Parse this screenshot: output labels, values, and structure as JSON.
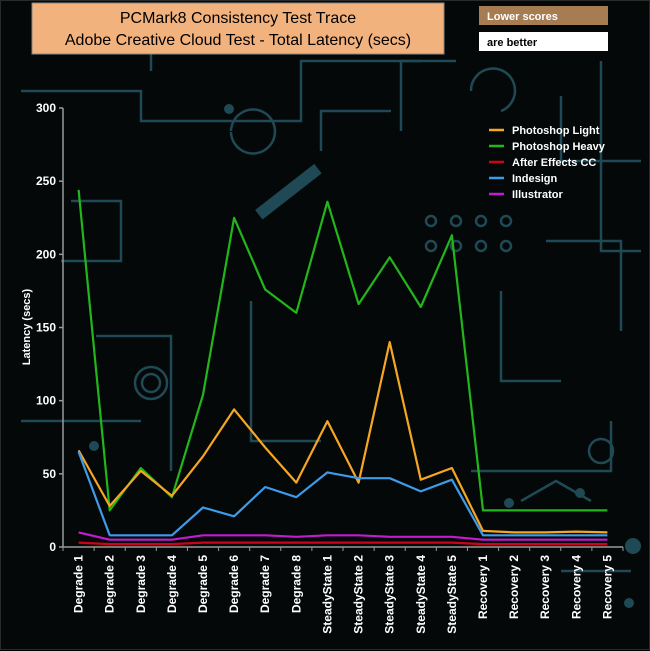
{
  "colors": {
    "background": "#050808",
    "circuit": "#1f4a55",
    "axis": "#9a9a9a",
    "title_box": "#f2b27d",
    "badge_top": "#a67c52",
    "badge_bottom": "#ffffff"
  },
  "badge": {
    "line1": "Lower scores",
    "line2": "are better"
  },
  "chart_data": {
    "type": "line",
    "title": "PCMark8 Consistency Test Trace",
    "subtitle": "Adobe Creative Cloud Test -  Total Latency (secs)",
    "xlabel": "",
    "ylabel": "Latency (secs)",
    "ylim": [
      0,
      300
    ],
    "yticks": [
      0,
      50,
      100,
      150,
      200,
      250,
      300
    ],
    "grid": false,
    "legend_position": "top-right",
    "categories": [
      "Degrade 1",
      "Degrade 2",
      "Degrade 3",
      "Degrade 4",
      "Degrade 5",
      "Degrade 6",
      "Degrade 7",
      "Degrade 8",
      "SteadyState 1",
      "SteadyState 2",
      "SteadyState 3",
      "SteadyState 4",
      "SteadyState 5",
      "Recovery 1",
      "Recovery 2",
      "Recovery 3",
      "Recovery 4",
      "Recovery 5"
    ],
    "series": [
      {
        "name": "Photoshop Light",
        "color": "#f5a623",
        "values": [
          66,
          28,
          52,
          35,
          62,
          94,
          68,
          44,
          86,
          44,
          140,
          46,
          54,
          11,
          10,
          10,
          10.5,
          10
        ]
      },
      {
        "name": " Photoshop Heavy",
        "color": "#22b61a",
        "values": [
          244,
          25,
          54,
          34,
          104,
          225,
          176,
          160,
          236,
          166,
          198,
          164,
          213,
          25,
          25,
          25,
          25,
          25
        ]
      },
      {
        "name": "After Effects CC",
        "color": "#d0021b",
        "values": [
          3,
          2,
          2,
          2,
          3,
          3,
          3,
          3,
          3,
          3,
          3,
          3,
          3,
          2,
          2,
          2,
          2,
          2
        ]
      },
      {
        "name": "Indesign",
        "color": "#3d9be9",
        "values": [
          65,
          8,
          8,
          8,
          27,
          21,
          41,
          34,
          51,
          47,
          47,
          38,
          46,
          8,
          8,
          8,
          8,
          8
        ]
      },
      {
        "name": "Illustrator",
        "color": "#c21bd0",
        "values": [
          10,
          5,
          5,
          5,
          8,
          8,
          8,
          7,
          8,
          8,
          7,
          7,
          7,
          5,
          5,
          5,
          5,
          5
        ]
      }
    ]
  }
}
